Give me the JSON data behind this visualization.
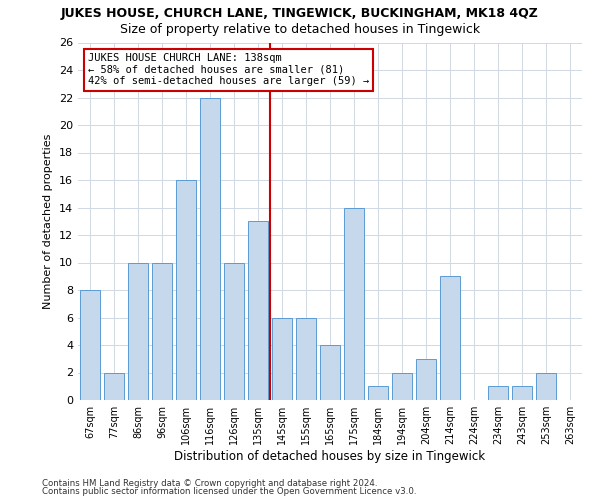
{
  "title": "JUKES HOUSE, CHURCH LANE, TINGEWICK, BUCKINGHAM, MK18 4QZ",
  "subtitle": "Size of property relative to detached houses in Tingewick",
  "xlabel": "Distribution of detached houses by size in Tingewick",
  "ylabel": "Number of detached properties",
  "categories": [
    "67sqm",
    "77sqm",
    "86sqm",
    "96sqm",
    "106sqm",
    "116sqm",
    "126sqm",
    "135sqm",
    "145sqm",
    "155sqm",
    "165sqm",
    "175sqm",
    "184sqm",
    "194sqm",
    "204sqm",
    "214sqm",
    "224sqm",
    "234sqm",
    "243sqm",
    "253sqm",
    "263sqm"
  ],
  "values": [
    8,
    2,
    10,
    10,
    16,
    22,
    10,
    13,
    6,
    6,
    4,
    14,
    1,
    2,
    3,
    9,
    0,
    1,
    1,
    2,
    0
  ],
  "bar_color": "#c5d8ec",
  "bar_edge_color": "#5b9bd5",
  "vertical_line_x": 7.5,
  "vertical_line_color": "#cc0000",
  "annotation_line1": "JUKES HOUSE CHURCH LANE: 138sqm",
  "annotation_line2": "← 58% of detached houses are smaller (81)",
  "annotation_line3": "42% of semi-detached houses are larger (59) →",
  "annotation_box_color": "#ffffff",
  "annotation_box_edge_color": "#cc0000",
  "ylim": [
    0,
    26
  ],
  "yticks": [
    0,
    2,
    4,
    6,
    8,
    10,
    12,
    14,
    16,
    18,
    20,
    22,
    24,
    26
  ],
  "footer_line1": "Contains HM Land Registry data © Crown copyright and database right 2024.",
  "footer_line2": "Contains public sector information licensed under the Open Government Licence v3.0.",
  "title_fontsize": 9,
  "subtitle_fontsize": 9,
  "background_color": "#ffffff",
  "grid_color": "#d0d8e4"
}
